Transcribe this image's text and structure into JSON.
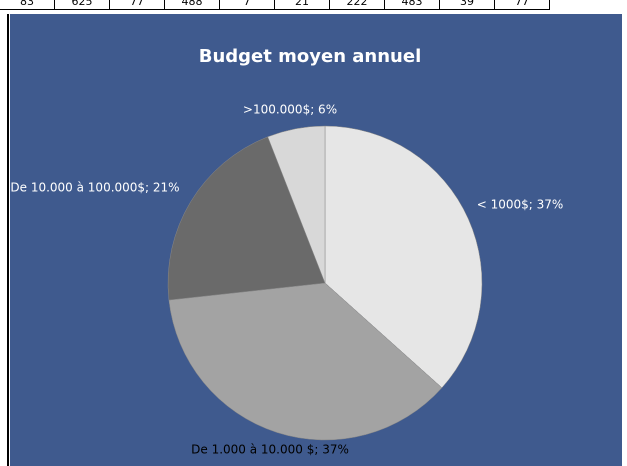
{
  "sheet_row": [
    "83",
    "625",
    "77",
    "488",
    "7",
    "21",
    "222",
    "483",
    "39",
    "77"
  ],
  "chart_data": {
    "type": "pie",
    "title": "Budget moyen annuel",
    "values": [
      37,
      37,
      21,
      6
    ],
    "value_labels": [
      "< 1000$; 37%",
      "De 1.000 à 10.000 $; 37%",
      "De 10.000 à 100.000$; 21%",
      ">100.000$; 6%"
    ],
    "colors": [
      "#e6e6e6",
      "#a3a3a3",
      "#6a6a6a",
      "#d8d8d8"
    ]
  }
}
